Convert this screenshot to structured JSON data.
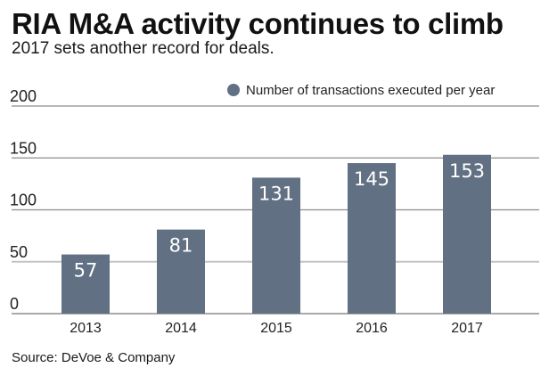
{
  "header": {
    "title": "RIA M&A activity continues to climb",
    "subtitle": "2017 sets another record for deals."
  },
  "footer": {
    "source": "Source: DeVoe & Company"
  },
  "colors": {
    "bar": "#627083",
    "gridline": "#8c8c8c",
    "gridline_light": "#c4c4c4",
    "axis": "#777777",
    "bar_label": "#ffffff"
  },
  "chart_data": {
    "type": "bar",
    "title": "RIA M&A activity continues to climb",
    "subtitle": "2017 sets another record for deals.",
    "categories": [
      "2013",
      "2014",
      "2015",
      "2016",
      "2017"
    ],
    "series": [
      {
        "name": "Number of transactions executed per year",
        "values": [
          57,
          81,
          131,
          145,
          153
        ]
      }
    ],
    "xlabel": "",
    "ylabel": "",
    "ylim": [
      0,
      200
    ],
    "yticks": [
      0,
      50,
      100,
      150,
      200
    ],
    "grid": true,
    "legend": {
      "position": "top-right",
      "entries": [
        "Number of transactions executed per year"
      ]
    },
    "data_labels": true,
    "source": "Source: DeVoe & Company"
  }
}
